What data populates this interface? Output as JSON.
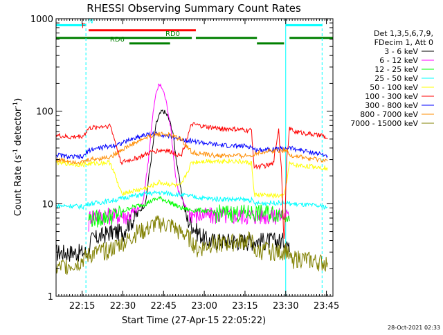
{
  "chart_data": {
    "type": "line",
    "title": "RHESSI Observing Summary Count Rates",
    "xlabel": "Start Time (27-Apr-15 22:05:22)",
    "ylabel": "Count Rate (s⁻¹ detector⁻¹)",
    "ylabel_parts": {
      "main": "Count Rate (s",
      "exp1": "-1",
      "mid": " detector",
      "exp2": "-1",
      "end": ")"
    },
    "x_unit": "minutes after 22:05:22",
    "xlim": [
      0,
      102
    ],
    "yscale": "log",
    "ylim": [
      1,
      1000
    ],
    "xticks": [
      {
        "value": 9.6,
        "label": "22:15"
      },
      {
        "value": 24.6,
        "label": "22:30"
      },
      {
        "value": 39.6,
        "label": "22:45"
      },
      {
        "value": 54.6,
        "label": "23:00"
      },
      {
        "value": 69.6,
        "label": "23:15"
      },
      {
        "value": 84.6,
        "label": "23:30"
      },
      {
        "value": 99.6,
        "label": "23:45"
      }
    ],
    "yticks": [
      {
        "value": 1,
        "label": "1"
      },
      {
        "value": 10,
        "label": "10"
      },
      {
        "value": 100,
        "label": "100"
      },
      {
        "value": 1000,
        "label": "1000"
      }
    ],
    "legend": {
      "position": "right",
      "header": [
        "Det 1,3,5,6,7,9,",
        "FDecim 1, Att 0"
      ]
    },
    "series": [
      {
        "name": "3 - 6 keV",
        "color": "#000000",
        "points": [
          [
            0,
            3
          ],
          [
            12,
            3
          ],
          [
            12.5,
            4
          ],
          [
            20,
            5
          ],
          [
            22,
            5
          ],
          [
            25,
            5
          ],
          [
            26,
            6
          ],
          [
            29,
            7
          ],
          [
            30,
            8
          ],
          [
            33,
            10
          ],
          [
            34,
            18
          ],
          [
            35,
            30
          ],
          [
            36,
            50
          ],
          [
            37,
            75
          ],
          [
            38,
            90
          ],
          [
            39,
            100
          ],
          [
            40,
            98
          ],
          [
            41,
            90
          ],
          [
            42,
            75
          ],
          [
            43,
            60
          ],
          [
            44,
            35
          ],
          [
            45,
            22
          ],
          [
            46,
            14
          ],
          [
            47,
            10
          ],
          [
            48,
            7
          ],
          [
            50,
            6
          ],
          [
            52,
            5
          ],
          [
            56,
            4
          ],
          [
            62,
            4
          ],
          [
            68,
            4
          ],
          [
            70,
            4
          ],
          [
            77,
            4
          ],
          [
            85,
            4
          ],
          [
            86,
            3
          ]
        ]
      },
      {
        "name": "6 - 12 keV",
        "color": "#ff00ff",
        "points": [
          [
            12,
            6
          ],
          [
            12.5,
            7.5
          ],
          [
            20,
            7.5
          ],
          [
            26,
            7.5
          ],
          [
            29,
            8
          ],
          [
            32,
            10
          ],
          [
            34,
            30
          ],
          [
            35,
            60
          ],
          [
            36,
            110
          ],
          [
            37,
            165
          ],
          [
            38,
            195
          ],
          [
            39,
            180
          ],
          [
            40,
            150
          ],
          [
            41,
            110
          ],
          [
            42,
            75
          ],
          [
            43,
            40
          ],
          [
            44,
            20
          ],
          [
            45,
            14
          ],
          [
            47,
            10
          ],
          [
            49,
            8
          ],
          [
            52,
            7.5
          ],
          [
            60,
            7.5
          ],
          [
            68,
            7.5
          ],
          [
            73,
            7.5
          ],
          [
            78,
            7.5
          ],
          [
            85,
            7.5
          ],
          [
            86,
            6.5
          ]
        ]
      },
      {
        "name": "12 - 25 keV",
        "color": "#00ff00",
        "points": [
          [
            12,
            7
          ],
          [
            16,
            7
          ],
          [
            20,
            7.5
          ],
          [
            24,
            8
          ],
          [
            27,
            9
          ],
          [
            30,
            9.5
          ],
          [
            33,
            10
          ],
          [
            36,
            11
          ],
          [
            38,
            11.5
          ],
          [
            40,
            11
          ],
          [
            43,
            10
          ],
          [
            46,
            9
          ],
          [
            50,
            8.5
          ],
          [
            54,
            8.5
          ],
          [
            58,
            8
          ],
          [
            64,
            8
          ],
          [
            70,
            8
          ],
          [
            73,
            8
          ],
          [
            77,
            8
          ],
          [
            81,
            8
          ],
          [
            85,
            8
          ],
          [
            86,
            6.5
          ]
        ]
      },
      {
        "name": "25 - 50 keV",
        "color": "#00ffff",
        "points": [
          [
            0,
            9.5
          ],
          [
            5,
            9.5
          ],
          [
            10,
            9.3
          ],
          [
            12,
            10
          ],
          [
            16,
            10.3
          ],
          [
            20,
            10.8
          ],
          [
            23,
            11.2
          ],
          [
            26,
            11.8
          ],
          [
            30,
            12.3
          ],
          [
            33,
            12.8
          ],
          [
            36,
            13
          ],
          [
            38,
            13.2
          ],
          [
            40,
            13
          ],
          [
            43,
            12.8
          ],
          [
            46,
            12.5
          ],
          [
            50,
            12
          ],
          [
            54,
            11.5
          ],
          [
            58,
            11.3
          ],
          [
            64,
            11.2
          ],
          [
            70,
            11
          ],
          [
            72,
            11
          ],
          [
            73,
            10
          ],
          [
            78,
            10.2
          ],
          [
            84,
            10.3
          ],
          [
            86,
            10
          ],
          [
            90,
            9.8
          ],
          [
            96,
            9.5
          ],
          [
            100,
            9.2
          ]
        ]
      },
      {
        "name": "50 - 100 keV",
        "color": "#ffff00",
        "points": [
          [
            0,
            28
          ],
          [
            5,
            27
          ],
          [
            10,
            26.5
          ],
          [
            12,
            27
          ],
          [
            16,
            27.5
          ],
          [
            20,
            28
          ],
          [
            24,
            13
          ],
          [
            30,
            14
          ],
          [
            34,
            15
          ],
          [
            36,
            16
          ],
          [
            38,
            17
          ],
          [
            40,
            16.5
          ],
          [
            43,
            16
          ],
          [
            46,
            15.5
          ],
          [
            50,
            28
          ],
          [
            55,
            29
          ],
          [
            60,
            29
          ],
          [
            65,
            29
          ],
          [
            70,
            28
          ],
          [
            72,
            27.5
          ],
          [
            73,
            12.5
          ],
          [
            78,
            12.3
          ],
          [
            84,
            12
          ],
          [
            86,
            27
          ],
          [
            88,
            26
          ],
          [
            92,
            25.5
          ],
          [
            96,
            25
          ],
          [
            100,
            24.5
          ]
        ]
      },
      {
        "name": "100 - 300 keV",
        "color": "#ff0000",
        "points": [
          [
            0,
            55
          ],
          [
            5,
            52
          ],
          [
            10,
            54
          ],
          [
            12,
            65
          ],
          [
            16,
            68
          ],
          [
            20,
            70
          ],
          [
            24,
            28
          ],
          [
            28,
            30
          ],
          [
            32,
            33
          ],
          [
            36,
            37
          ],
          [
            40,
            38
          ],
          [
            43,
            36
          ],
          [
            46,
            33
          ],
          [
            50,
            72
          ],
          [
            55,
            68
          ],
          [
            60,
            65
          ],
          [
            65,
            64
          ],
          [
            70,
            62
          ],
          [
            72,
            62
          ],
          [
            73,
            25
          ],
          [
            78,
            26
          ],
          [
            80,
            27
          ],
          [
            82,
            65
          ],
          [
            83,
            24
          ],
          [
            84,
            4
          ],
          [
            85,
            30
          ],
          [
            86,
            65
          ],
          [
            88,
            60
          ],
          [
            92,
            58
          ],
          [
            96,
            55
          ],
          [
            98,
            55
          ],
          [
            100,
            50
          ]
        ]
      },
      {
        "name": "300 - 800 keV",
        "color": "#0000ff",
        "points": [
          [
            0,
            34
          ],
          [
            5,
            32
          ],
          [
            10,
            32
          ],
          [
            12,
            38
          ],
          [
            16,
            40
          ],
          [
            20,
            42
          ],
          [
            24,
            45
          ],
          [
            28,
            50
          ],
          [
            32,
            55
          ],
          [
            36,
            57
          ],
          [
            39,
            56
          ],
          [
            42,
            53
          ],
          [
            46,
            50
          ],
          [
            50,
            48
          ],
          [
            55,
            45
          ],
          [
            60,
            43
          ],
          [
            65,
            42
          ],
          [
            70,
            42
          ],
          [
            72,
            41
          ],
          [
            73,
            38
          ],
          [
            78,
            39
          ],
          [
            82,
            39
          ],
          [
            85,
            40
          ],
          [
            86,
            40
          ],
          [
            88,
            39
          ],
          [
            92,
            37
          ],
          [
            96,
            35
          ],
          [
            100,
            33
          ]
        ]
      },
      {
        "name": "800 - 7000 keV",
        "color": "#ff8c00",
        "points": [
          [
            0,
            30
          ],
          [
            5,
            29
          ],
          [
            10,
            28
          ],
          [
            12,
            30
          ],
          [
            16,
            31
          ],
          [
            20,
            32
          ],
          [
            24,
            38
          ],
          [
            28,
            44
          ],
          [
            32,
            50
          ],
          [
            36,
            56
          ],
          [
            39,
            57
          ],
          [
            42,
            55
          ],
          [
            46,
            50
          ],
          [
            50,
            36
          ],
          [
            55,
            34
          ],
          [
            60,
            33
          ],
          [
            65,
            33
          ],
          [
            70,
            33
          ],
          [
            72,
            33
          ],
          [
            73,
            35
          ],
          [
            78,
            37
          ],
          [
            82,
            38
          ],
          [
            85,
            38
          ],
          [
            86,
            33
          ],
          [
            88,
            33
          ],
          [
            92,
            31
          ],
          [
            96,
            30
          ],
          [
            100,
            29
          ]
        ]
      },
      {
        "name": "7000 - 15000 keV",
        "color": "#808000",
        "points": [
          [
            0,
            2
          ],
          [
            4,
            2.2
          ],
          [
            8,
            2.3
          ],
          [
            12,
            2.8
          ],
          [
            15,
            3
          ],
          [
            20,
            3.2
          ],
          [
            24,
            3.8
          ],
          [
            26,
            4
          ],
          [
            30,
            5
          ],
          [
            33,
            5.2
          ],
          [
            36,
            6
          ],
          [
            38,
            6.2
          ],
          [
            40,
            6
          ],
          [
            43,
            5.8
          ],
          [
            45,
            5
          ],
          [
            47,
            4.8
          ],
          [
            50,
            4
          ],
          [
            52,
            3.2
          ],
          [
            55,
            3.5
          ],
          [
            58,
            3.8
          ],
          [
            62,
            3.7
          ],
          [
            66,
            3.9
          ],
          [
            70,
            4
          ],
          [
            72,
            4.2
          ],
          [
            73,
            3
          ],
          [
            78,
            3.2
          ],
          [
            82,
            3
          ],
          [
            85,
            3.2
          ],
          [
            86,
            2.5
          ],
          [
            90,
            2.6
          ],
          [
            95,
            2.4
          ],
          [
            100,
            2.3
          ]
        ]
      }
    ],
    "annotations": [
      {
        "kind": "segment",
        "label": "N",
        "color": "#00ffff",
        "x1": 0,
        "x2": 11,
        "y": 850
      },
      {
        "kind": "segment",
        "label": "",
        "color": "#00ffff",
        "x1": 84.6,
        "x2": 98,
        "y": 850
      },
      {
        "kind": "segment",
        "label": "F",
        "color": "#ff0000",
        "x1": 12,
        "x2": 51.5,
        "y": 750
      },
      {
        "kind": "segment",
        "label": "RD0",
        "color": "#008000",
        "x1": 0,
        "x2": 50,
        "y": 620
      },
      {
        "kind": "segment",
        "label": "",
        "color": "#008000",
        "x1": 51.5,
        "x2": 74,
        "y": 620
      },
      {
        "kind": "segment",
        "label": "",
        "color": "#008000",
        "x1": 86,
        "x2": 102,
        "y": 620
      },
      {
        "kind": "segment",
        "label": "RD6",
        "color": "#008000",
        "x1": 27,
        "x2": 42,
        "y": 540
      },
      {
        "kind": "segment",
        "label": "",
        "color": "#008000",
        "x1": 74,
        "x2": 84,
        "y": 540
      }
    ],
    "vertical_markers": [
      {
        "x": 11,
        "style": "dashed",
        "color": "#00ffff"
      },
      {
        "x": 84.6,
        "style": "solid",
        "color": "#00ffff"
      },
      {
        "x": 98,
        "style": "dashed",
        "color": "#00ffff"
      }
    ],
    "timestamp": "28-Oct-2021 02:33"
  }
}
